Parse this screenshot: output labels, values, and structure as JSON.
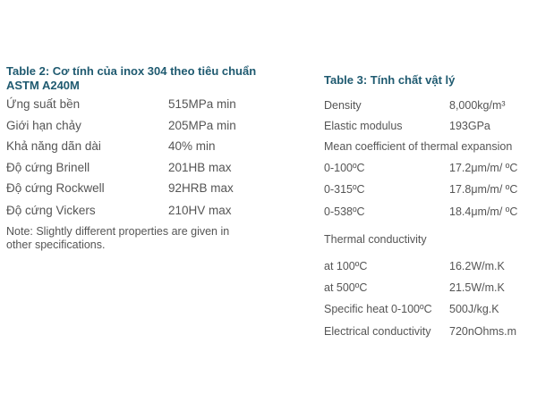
{
  "table2": {
    "title_line1": "Table 2: Cơ tính của inox 304 theo tiêu chuẩn",
    "title_line2": "ASTM A240M",
    "rows": [
      [
        "Ứng suất bền",
        "515MPa min"
      ],
      [
        "Giới hạn chảy",
        "205MPa min"
      ],
      [
        "Khả năng dãn dài",
        "40% min"
      ],
      [
        "Độ cứng Brinell",
        "201HB max"
      ],
      [
        "Độ cứng Rockwell",
        "92HRB max"
      ],
      [
        "Độ cứng Vickers",
        "210HV max"
      ]
    ],
    "note_line1": "Note: Slightly different properties  are given in",
    "note_line2": "other specifications."
  },
  "table3": {
    "title": "Table 3:  Tính chất vật lý",
    "rows": [
      [
        "Density",
        "8,000kg/m³"
      ],
      [
        "Elastic modulus",
        "193GPa"
      ],
      [
        "Mean coefficient of thermal expansion",
        ""
      ],
      [
        "0-100ºC",
        "17.2μm/m/ ºC"
      ],
      [
        "0-315ºC",
        "17.8μm/m/ ºC"
      ],
      [
        "0-538ºC",
        "18.4μm/m/ ºC"
      ],
      [
        "Thermal conductivity",
        ""
      ],
      [
        "at 100ºC",
        "16.2W/m.K"
      ],
      [
        "at 500ºC",
        "21.5W/m.K"
      ],
      [
        "Specific heat 0-100ºC",
        "500J/kg.K"
      ],
      [
        "Electrical conductivity",
        "720nOhms.m"
      ]
    ]
  }
}
